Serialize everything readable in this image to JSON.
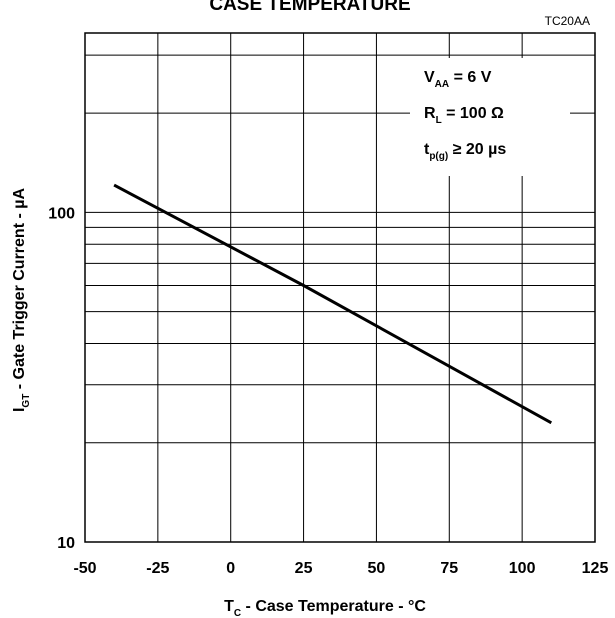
{
  "chart_data": {
    "type": "line",
    "title": "CASE TEMPERATURE",
    "figure_code": "TC20AA",
    "xlabel": {
      "main": "T",
      "sub": "C",
      "rest": " - Case Temperature - °C"
    },
    "ylabel": {
      "main": "I",
      "sub": "GT",
      "rest": " - Gate Trigger Current - µA"
    },
    "x_ticks": [
      "-50",
      "-25",
      "0",
      "25",
      "50",
      "75",
      "100",
      "125"
    ],
    "y_ticks": [
      "10",
      "100"
    ],
    "xlim": [
      -50,
      125
    ],
    "ylim": [
      10,
      350
    ],
    "y_scale": "log",
    "grid": true,
    "conditions": [
      {
        "main": "V",
        "sub": "AA",
        "rest": " = 6 V"
      },
      {
        "main": "R",
        "sub": "L",
        "rest": " = 100 Ω"
      },
      {
        "main": "t",
        "sub": "p(g)",
        "rest": " ≥ 20 µs"
      }
    ],
    "series": [
      {
        "x": [
          -40,
          25,
          110
        ],
        "y": [
          121,
          60,
          23
        ]
      }
    ]
  }
}
